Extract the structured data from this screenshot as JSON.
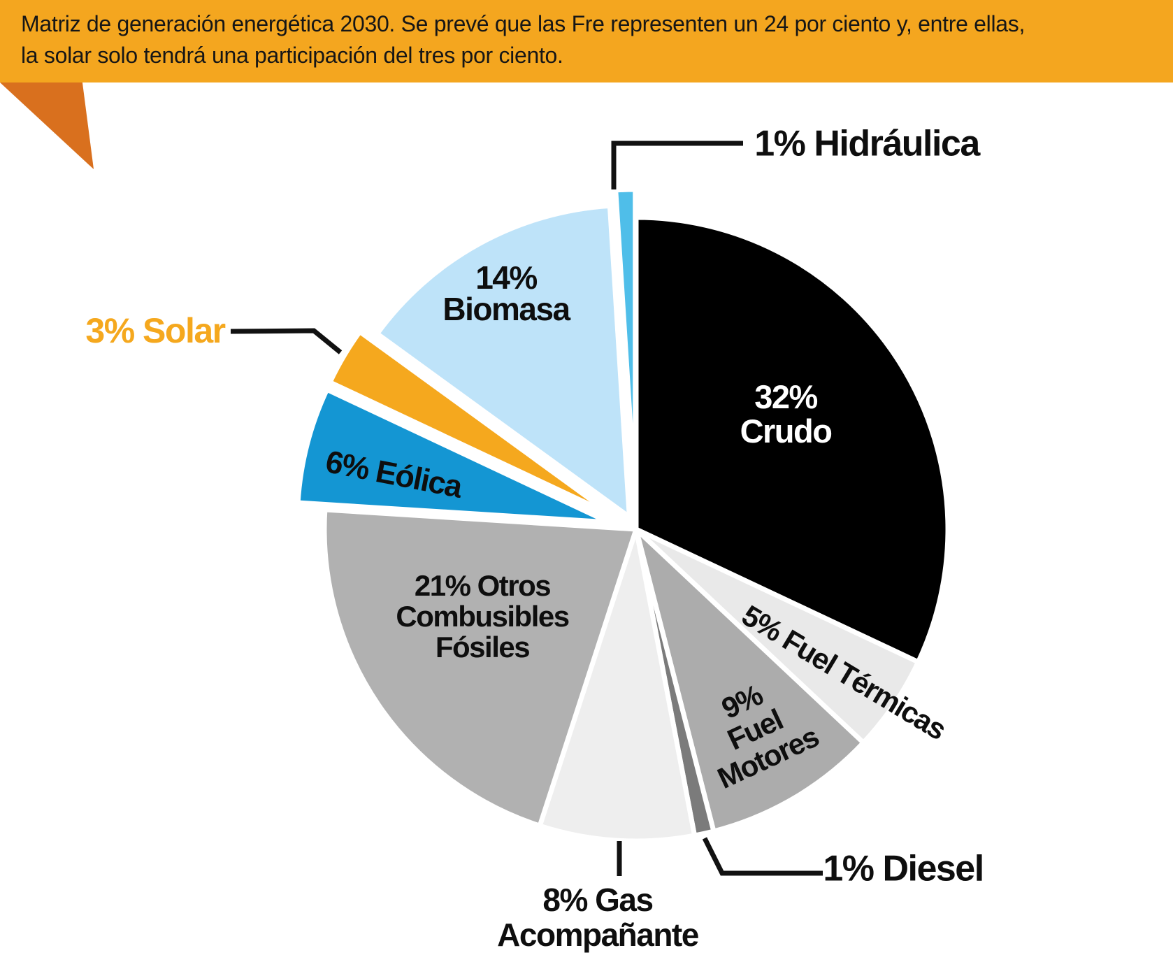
{
  "banner": {
    "text": "Matriz de generación energética 2030. Se prevé que las Fre representen un 24 por ciento y, entre ellas,\nla solar solo tendrá una participación del tres por ciento."
  },
  "chart_data": {
    "type": "pie",
    "unit": "percent",
    "start_angle": "12 o'clock, clockwise",
    "legend_position": "labels-on-slices-and-callouts",
    "slices": [
      {
        "name": "Crudo",
        "pct": 32,
        "color": "#000000",
        "label": "32%\nCrudo",
        "exploded": false
      },
      {
        "name": "Fuel Térmicas",
        "pct": 5,
        "color": "#E9E9E9",
        "label": "5% Fuel Térmicas",
        "exploded": false
      },
      {
        "name": "Fuel Motores",
        "pct": 9,
        "color": "#ACACAC",
        "label": "9%\nFuel\nMotores",
        "exploded": false
      },
      {
        "name": "Diesel",
        "pct": 1,
        "color": "#7B7B7B",
        "label": "1% Diesel",
        "exploded": false
      },
      {
        "name": "Gas Acompañante",
        "pct": 8,
        "color": "#EEEEEE",
        "label": "8% Gas\nAcompañante",
        "exploded": false
      },
      {
        "name": "Otros Combusibles Fósiles",
        "pct": 21,
        "color": "#B1B1B1",
        "label": "21% Otros\nCombusibles\nFósiles",
        "exploded": false
      },
      {
        "name": "Eólica",
        "pct": 6,
        "color": "#1496D3",
        "label": "6% Eólica",
        "exploded": true
      },
      {
        "name": "Solar",
        "pct": 3,
        "color": "#F5A81E",
        "label": "3% Solar",
        "exploded": true
      },
      {
        "name": "Biomasa",
        "pct": 14,
        "color": "#BEE3F9",
        "label": "14%\nBiomasa",
        "exploded": true
      },
      {
        "name": "Hidráulica",
        "pct": 1,
        "color": "#4FBEE9",
        "label": "1% Hidráulica",
        "exploded": true
      }
    ]
  },
  "colors": {
    "banner_bg": "#F4A61F",
    "corner_triangle": "#D9701E",
    "leader_line": "#111111",
    "crudo_label_text": "#FFFFFF",
    "solar_label_text": "#F5A81E"
  }
}
